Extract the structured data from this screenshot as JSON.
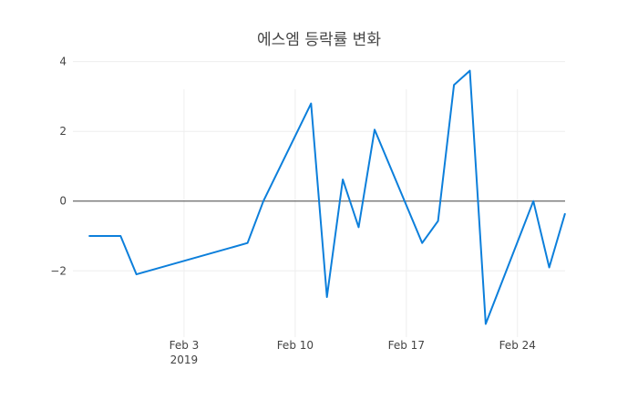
{
  "chart_data": {
    "type": "line",
    "title": "에스엠 등락률 변화",
    "xlabel": "",
    "ylabel": "",
    "x_axis_type": "date",
    "xlim": [
      "2019-01-27",
      "2019-02-27"
    ],
    "ylim": [
      -3.9,
      4.2
    ],
    "x_ticks": [
      {
        "value": "2019-02-03",
        "label": "Feb 3",
        "sublabel": "2019"
      },
      {
        "value": "2019-02-10",
        "label": "Feb 10"
      },
      {
        "value": "2019-02-17",
        "label": "Feb 17"
      },
      {
        "value": "2019-02-24",
        "label": "Feb 24"
      }
    ],
    "y_ticks": [
      {
        "value": 4,
        "label": "4"
      },
      {
        "value": 2,
        "label": "2"
      },
      {
        "value": 0,
        "label": "0"
      },
      {
        "value": -2,
        "label": "−2"
      }
    ],
    "grid": true,
    "zero_line": true,
    "line_color": "#0c7fdb",
    "grid_color": "#eeeeee",
    "zero_line_color": "#444444",
    "series": [
      {
        "x": [
          "2019-01-28",
          "2019-01-29",
          "2019-01-30",
          "2019-01-31",
          "2019-02-07",
          "2019-02-08",
          "2019-02-11",
          "2019-02-12",
          "2019-02-13",
          "2019-02-14",
          "2019-02-15",
          "2019-02-18",
          "2019-02-19",
          "2019-02-20",
          "2019-02-21",
          "2019-02-22",
          "2019-02-25",
          "2019-02-26",
          "2019-02-27"
        ],
        "y": [
          -1.0,
          -1.0,
          -1.0,
          -2.1,
          -1.2,
          0.0,
          2.8,
          -2.75,
          0.62,
          -0.75,
          2.05,
          -1.2,
          -0.57,
          3.33,
          3.74,
          -3.52,
          0.0,
          -1.9,
          -0.35
        ]
      }
    ]
  }
}
